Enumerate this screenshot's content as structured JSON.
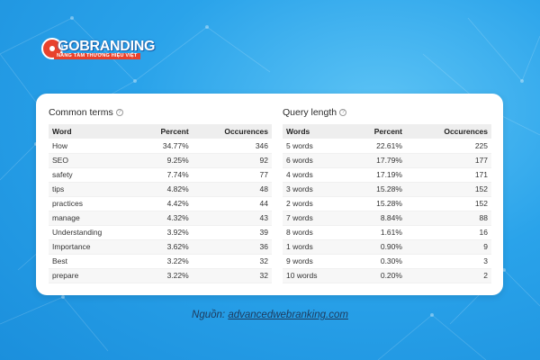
{
  "brand": {
    "name": "GOBRANDING",
    "tagline": "NÂNG TẦM THƯƠNG HIỆU VIỆT",
    "accent": "#e8422d"
  },
  "common_terms": {
    "title": "Common terms",
    "help_icon": "question-circle-icon",
    "headers": [
      "Word",
      "Percent",
      "Occurences"
    ],
    "rows": [
      [
        "How",
        "34.77%",
        "346"
      ],
      [
        "SEO",
        "9.25%",
        "92"
      ],
      [
        "safety",
        "7.74%",
        "77"
      ],
      [
        "tips",
        "4.82%",
        "48"
      ],
      [
        "practices",
        "4.42%",
        "44"
      ],
      [
        "manage",
        "4.32%",
        "43"
      ],
      [
        "Understanding",
        "3.92%",
        "39"
      ],
      [
        "Importance",
        "3.62%",
        "36"
      ],
      [
        "Best",
        "3.22%",
        "32"
      ],
      [
        "prepare",
        "3.22%",
        "32"
      ]
    ]
  },
  "query_length": {
    "title": "Query length",
    "help_icon": "question-circle-icon",
    "headers": [
      "Words",
      "Percent",
      "Occurences"
    ],
    "rows": [
      [
        "5 words",
        "22.61%",
        "225"
      ],
      [
        "6 words",
        "17.79%",
        "177"
      ],
      [
        "4 words",
        "17.19%",
        "171"
      ],
      [
        "3 words",
        "15.28%",
        "152"
      ],
      [
        "2 words",
        "15.28%",
        "152"
      ],
      [
        "7 words",
        "8.84%",
        "88"
      ],
      [
        "8 words",
        "1.61%",
        "16"
      ],
      [
        "1 words",
        "0.90%",
        "9"
      ],
      [
        "9 words",
        "0.30%",
        "3"
      ],
      [
        "10 words",
        "0.20%",
        "2"
      ]
    ]
  },
  "caption": {
    "prefix": "Nguồn:",
    "link": "advancedwebranking.com"
  }
}
